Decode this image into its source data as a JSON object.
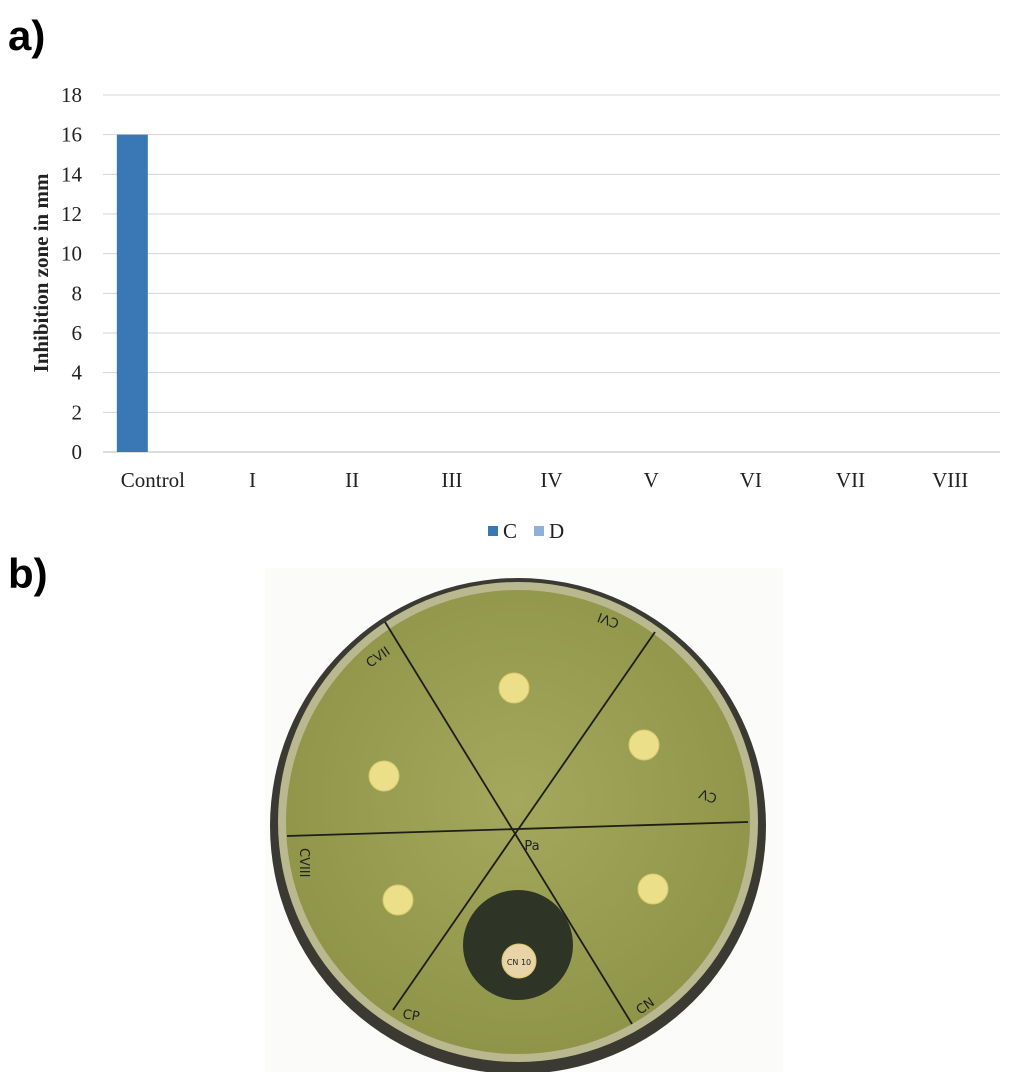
{
  "panel_labels": [
    "a)",
    "b)"
  ],
  "chart_data": {
    "type": "bar",
    "ylabel": "Inhibition zone in mm",
    "categories": [
      "Control",
      "I",
      "II",
      "III",
      "IV",
      "V",
      "VI",
      "VII",
      "VIII"
    ],
    "series": [
      {
        "name": "C",
        "color": "#3a78b5",
        "values": [
          16,
          0,
          0,
          0,
          0,
          0,
          0,
          0,
          0
        ]
      },
      {
        "name": "D",
        "color": "#8fb0d8",
        "values": [
          0,
          0,
          0,
          0,
          0,
          0,
          0,
          0,
          0
        ]
      }
    ],
    "ylim": [
      0,
      18
    ],
    "yticks": [
      0,
      2,
      4,
      6,
      8,
      10,
      12,
      14,
      16,
      18
    ],
    "grid": true,
    "legend": "bottom"
  },
  "photo": {
    "labels": [
      "CVII",
      "CVI",
      "CV",
      "CN",
      "CP",
      "CVIII",
      "Pa",
      "CN 10"
    ]
  }
}
